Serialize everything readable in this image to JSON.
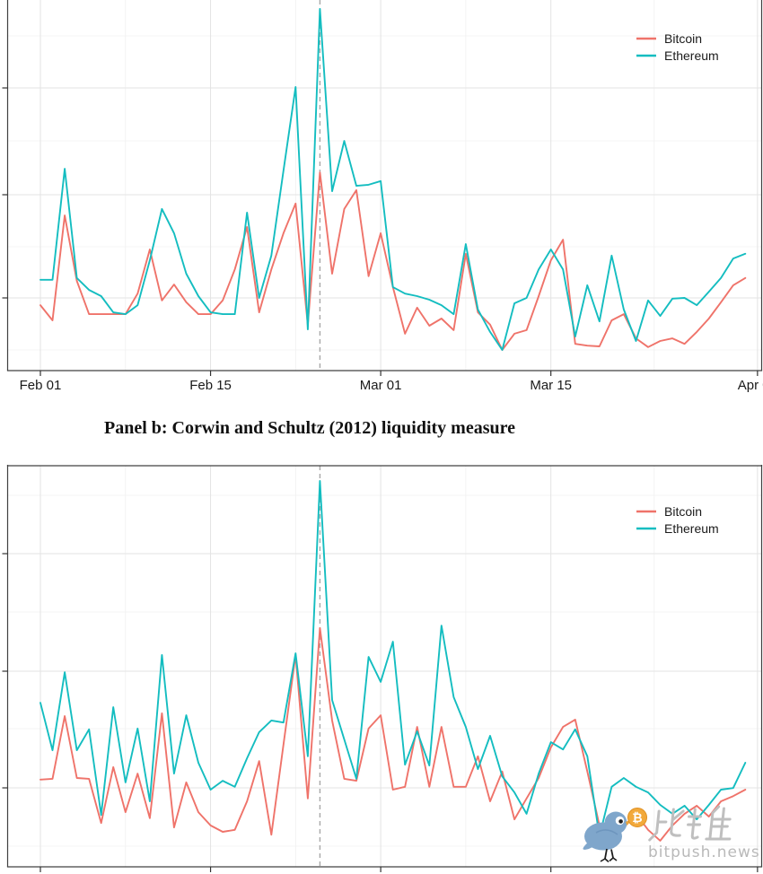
{
  "figure": {
    "panel_b_title": "Panel b: Corwin and Schultz (2012) liquidity measure",
    "watermark": {
      "cn": "比推",
      "en": "bitpush.news"
    },
    "colors": {
      "bitcoin": "#EF736A",
      "ethereum": "#14BDC0",
      "event_line": "#A8A8A8",
      "grid_major": "#E3E3E3",
      "grid_minor": "#F1F1F1",
      "panel_border": "#404040",
      "watermark_gray": "#BCBCBC",
      "bird_blue": "#7FA6CB",
      "coin_orange": "#F2A93B"
    }
  },
  "chart_data": [
    {
      "type": "line",
      "position": "top panel (its own title is cropped out of view)",
      "x": [
        "Feb 01",
        "Feb 02",
        "Feb 03",
        "Feb 04",
        "Feb 05",
        "Feb 06",
        "Feb 07",
        "Feb 08",
        "Feb 09",
        "Feb 10",
        "Feb 11",
        "Feb 12",
        "Feb 13",
        "Feb 14",
        "Feb 15",
        "Feb 16",
        "Feb 17",
        "Feb 18",
        "Feb 19",
        "Feb 20",
        "Feb 21",
        "Feb 22",
        "Feb 23",
        "Feb 24",
        "Feb 25",
        "Feb 26",
        "Feb 27",
        "Feb 28",
        "Mar 01",
        "Mar 02",
        "Mar 03",
        "Mar 04",
        "Mar 05",
        "Mar 06",
        "Mar 07",
        "Mar 08",
        "Mar 09",
        "Mar 10",
        "Mar 11",
        "Mar 12",
        "Mar 13",
        "Mar 14",
        "Mar 15",
        "Mar 16",
        "Mar 17",
        "Mar 18",
        "Mar 19",
        "Mar 20",
        "Mar 21",
        "Mar 22",
        "Mar 23",
        "Mar 24",
        "Mar 25",
        "Mar 26",
        "Mar 27",
        "Mar 28",
        "Mar 29",
        "Mar 30",
        "Mar 31"
      ],
      "x_ticks": [
        "Feb 01",
        "Feb 15",
        "Mar 01",
        "Mar 15",
        "Apr 01"
      ],
      "y_tick_labels_visible": false,
      "values_scale": "normalized 0-1 of panel height (y-axis numbers cropped off left edge)",
      "vline": {
        "date": "Feb 24",
        "style": "dashed"
      },
      "legend_position": "top-right",
      "grid": true,
      "series": [
        {
          "name": "Bitcoin",
          "color": "#EF736A",
          "values": [
            0.181,
            0.139,
            0.429,
            0.248,
            0.156,
            0.156,
            0.156,
            0.156,
            0.213,
            0.335,
            0.194,
            0.238,
            0.189,
            0.156,
            0.156,
            0.194,
            0.28,
            0.397,
            0.161,
            0.28,
            0.38,
            0.462,
            0.127,
            0.548,
            0.268,
            0.447,
            0.499,
            0.261,
            0.38,
            0.231,
            0.102,
            0.174,
            0.124,
            0.144,
            0.112,
            0.323,
            0.161,
            0.127,
            0.057,
            0.102,
            0.112,
            0.206,
            0.305,
            0.362,
            0.074,
            0.069,
            0.067,
            0.139,
            0.156,
            0.089,
            0.065,
            0.082,
            0.089,
            0.074,
            0.107,
            0.144,
            0.189,
            0.236,
            0.256
          ]
        },
        {
          "name": "Ethereum",
          "color": "#14BDC0",
          "values": [
            0.251,
            0.251,
            0.558,
            0.256,
            0.223,
            0.206,
            0.161,
            0.156,
            0.181,
            0.305,
            0.447,
            0.38,
            0.268,
            0.206,
            0.161,
            0.156,
            0.156,
            0.437,
            0.201,
            0.318,
            0.553,
            0.784,
            0.114,
            1.0,
            0.496,
            0.635,
            0.511,
            0.514,
            0.524,
            0.231,
            0.213,
            0.206,
            0.196,
            0.181,
            0.156,
            0.35,
            0.169,
            0.107,
            0.057,
            0.186,
            0.201,
            0.28,
            0.335,
            0.28,
            0.094,
            0.236,
            0.136,
            0.318,
            0.169,
            0.082,
            0.194,
            0.151,
            0.199,
            0.201,
            0.181,
            0.218,
            0.256,
            0.31,
            0.323
          ]
        }
      ]
    },
    {
      "type": "line",
      "position": "bottom panel",
      "title": "Panel b: Corwin and Schultz (2012) liquidity measure",
      "x": [
        "Feb 01",
        "Feb 02",
        "Feb 03",
        "Feb 04",
        "Feb 05",
        "Feb 06",
        "Feb 07",
        "Feb 08",
        "Feb 09",
        "Feb 10",
        "Feb 11",
        "Feb 12",
        "Feb 13",
        "Feb 14",
        "Feb 15",
        "Feb 16",
        "Feb 17",
        "Feb 18",
        "Feb 19",
        "Feb 20",
        "Feb 21",
        "Feb 22",
        "Feb 23",
        "Feb 24",
        "Feb 25",
        "Feb 26",
        "Feb 27",
        "Feb 28",
        "Mar 01",
        "Mar 02",
        "Mar 03",
        "Mar 04",
        "Mar 05",
        "Mar 06",
        "Mar 07",
        "Mar 08",
        "Mar 09",
        "Mar 10",
        "Mar 11",
        "Mar 12",
        "Mar 13",
        "Mar 14",
        "Mar 15",
        "Mar 16",
        "Mar 17",
        "Mar 18",
        "Mar 19",
        "Mar 20",
        "Mar 21",
        "Mar 22",
        "Mar 23",
        "Mar 24",
        "Mar 25",
        "Mar 26",
        "Mar 27",
        "Mar 28",
        "Mar 29",
        "Mar 30",
        "Mar 31"
      ],
      "x_ticks": [
        "Feb 01",
        "Feb 15",
        "Mar 01",
        "Mar 15",
        "Apr 01"
      ],
      "x_tick_labels_visible": false,
      "y_tick_labels_visible": false,
      "values_scale": "normalized 0-1 of panel height (axis numbers cropped)",
      "vline": {
        "date": "Feb 24",
        "style": "dashed"
      },
      "legend_position": "top-right",
      "grid": true,
      "series": [
        {
          "name": "Bitcoin",
          "color": "#EF736A",
          "values": [
            0.217,
            0.219,
            0.375,
            0.221,
            0.219,
            0.109,
            0.248,
            0.136,
            0.232,
            0.121,
            0.382,
            0.098,
            0.21,
            0.136,
            0.103,
            0.087,
            0.092,
            0.163,
            0.263,
            0.08,
            0.304,
            0.527,
            0.17,
            0.594,
            0.364,
            0.219,
            0.214,
            0.344,
            0.377,
            0.192,
            0.199,
            0.348,
            0.199,
            0.348,
            0.199,
            0.199,
            0.275,
            0.163,
            0.237,
            0.118,
            0.17,
            0.221,
            0.297,
            0.348,
            0.366,
            0.237,
            0.103,
            0.063,
            0.098,
            0.132,
            0.092,
            0.065,
            0.103,
            0.132,
            0.152,
            0.125,
            0.163,
            0.176,
            0.192
          ]
        },
        {
          "name": "Ethereum",
          "color": "#14BDC0",
          "values": [
            0.408,
            0.29,
            0.484,
            0.29,
            0.342,
            0.129,
            0.397,
            0.21,
            0.344,
            0.163,
            0.527,
            0.232,
            0.377,
            0.259,
            0.192,
            0.214,
            0.199,
            0.27,
            0.335,
            0.364,
            0.359,
            0.531,
            0.275,
            0.96,
            0.415,
            0.317,
            0.219,
            0.522,
            0.46,
            0.56,
            0.254,
            0.337,
            0.252,
            0.6,
            0.422,
            0.348,
            0.243,
            0.326,
            0.225,
            0.185,
            0.132,
            0.232,
            0.31,
            0.292,
            0.342,
            0.275,
            0.076,
            0.199,
            0.221,
            0.199,
            0.185,
            0.154,
            0.132,
            0.152,
            0.118,
            0.154,
            0.192,
            0.196,
            0.259
          ]
        }
      ]
    }
  ]
}
